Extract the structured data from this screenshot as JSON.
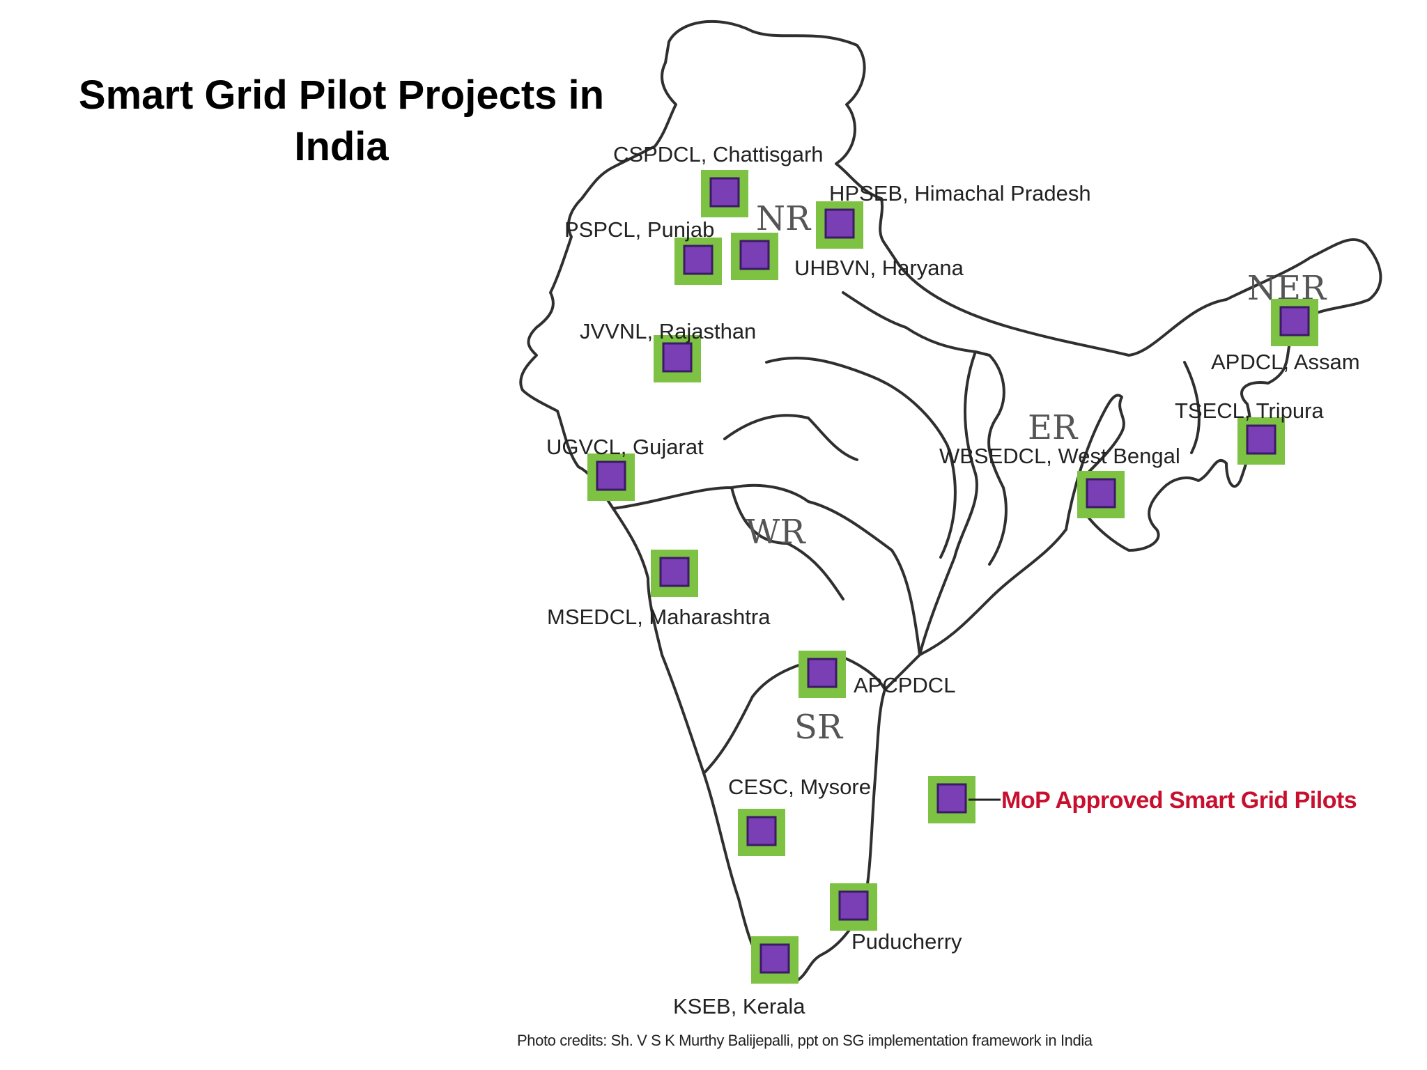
{
  "title": {
    "line1": "Smart Grid Pilot Projects in",
    "line2": "India"
  },
  "colors": {
    "marker_outer": "#7dc242",
    "marker_inner": "#7a3fb5",
    "legend_text": "#c8102e",
    "outline": "#2f2f2f"
  },
  "regions": [
    "NR",
    "NER",
    "ER",
    "WR",
    "SR"
  ],
  "pilots": [
    {
      "id": "cspdcl",
      "label": "CSPDCL, Chattisgarh"
    },
    {
      "id": "hpseb",
      "label": "HPSEB, Himachal Pradesh"
    },
    {
      "id": "pspcl",
      "label": "PSPCL, Punjab"
    },
    {
      "id": "uhbvn",
      "label": "UHBVN, Haryana"
    },
    {
      "id": "jvvnl",
      "label": "JVVNL, Rajasthan"
    },
    {
      "id": "apdcl",
      "label": "APDCL, Assam"
    },
    {
      "id": "tsecl",
      "label": "TSECL, Tripura"
    },
    {
      "id": "ugvcl",
      "label": "UGVCL, Gujarat"
    },
    {
      "id": "wbsedcl",
      "label": "WBSEDCL, West Bengal"
    },
    {
      "id": "msedcl",
      "label": "MSEDCL, Maharashtra"
    },
    {
      "id": "apcpdcl",
      "label": "APCPDCL"
    },
    {
      "id": "cesc",
      "label": "CESC, Mysore"
    },
    {
      "id": "puducherry",
      "label": "Puducherry"
    },
    {
      "id": "kseb",
      "label": "KSEB, Kerala"
    }
  ],
  "legend": {
    "label": "MoP Approved Smart Grid Pilots"
  },
  "credit": "Photo credits: Sh. V S K Murthy Balijepalli, ppt on SG implementation framework in India"
}
